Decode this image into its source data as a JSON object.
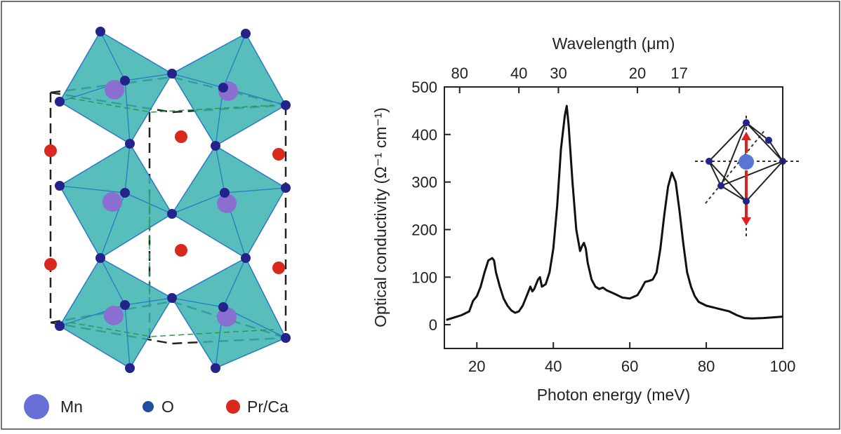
{
  "chart_data": {
    "type": "line",
    "xlabel": "Photon energy (meV)",
    "ylabel": "Optical conductivity (Ω⁻¹ cm⁻¹)",
    "x2label": "Wavelength (μm)",
    "xlim": [
      11.5,
      100
    ],
    "xticks": [
      20,
      40,
      60,
      80,
      100
    ],
    "ylim": [
      -50,
      500
    ],
    "yticks": [
      0,
      100,
      200,
      300,
      400,
      500
    ],
    "x2scale": "reciprocal",
    "x2lim": [
      107.8,
      12.4
    ],
    "x2ticks": [
      80,
      40,
      30,
      20,
      17
    ],
    "color": "#111111",
    "x": [
      12,
      14,
      16,
      18,
      19,
      20,
      21,
      22,
      23,
      24,
      24.5,
      25,
      26,
      27,
      28,
      29,
      30,
      31,
      32,
      33,
      34,
      34.5,
      35,
      36,
      36.5,
      37,
      38,
      39,
      40,
      41,
      42,
      43,
      43.5,
      44,
      45,
      46,
      47,
      47.5,
      48,
      48.5,
      49,
      50,
      51,
      52,
      53,
      54,
      56,
      58,
      60,
      62,
      63,
      64,
      65,
      66,
      67,
      68,
      69,
      70,
      71,
      72,
      73,
      74,
      75,
      76,
      77,
      78,
      80,
      82,
      84,
      86,
      88,
      90,
      92,
      95,
      100
    ],
    "values": [
      10,
      15,
      20,
      28,
      50,
      60,
      80,
      110,
      135,
      140,
      135,
      110,
      80,
      55,
      40,
      30,
      25,
      28,
      40,
      60,
      80,
      70,
      75,
      95,
      100,
      80,
      85,
      110,
      160,
      250,
      370,
      440,
      460,
      420,
      300,
      200,
      155,
      165,
      172,
      160,
      130,
      95,
      80,
      75,
      78,
      72,
      65,
      57,
      55,
      62,
      75,
      90,
      92,
      95,
      110,
      160,
      230,
      290,
      320,
      300,
      240,
      170,
      110,
      80,
      60,
      48,
      40,
      36,
      32,
      28,
      20,
      14,
      13,
      14,
      17
    ]
  },
  "structure_legend": [
    "Mn",
    "O",
    "Pr/Ca"
  ]
}
